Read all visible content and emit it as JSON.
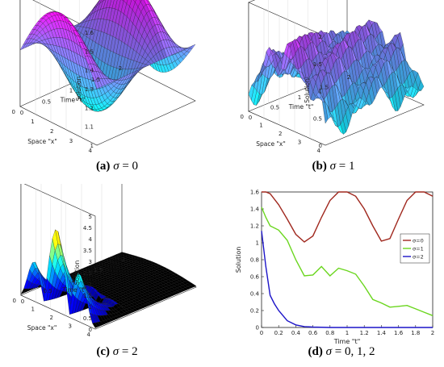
{
  "chart_data": [
    {
      "id": "a",
      "type": "surface",
      "caption": {
        "label": "(a)",
        "symbol": "σ",
        "rest": " = 0"
      },
      "zlabel": "Solution",
      "xlabel": "Space \"x\"",
      "ylabel": "Time \"t\"",
      "zticks": [
        "1",
        "1.1",
        "1.2",
        "1.3",
        "1.4",
        "1.5",
        "1.6"
      ],
      "xticks": [
        "4",
        "3",
        "2",
        "1",
        "0"
      ],
      "tticks": [
        "0",
        "0.5",
        "1",
        "1.5",
        "2"
      ],
      "colormap": "cool",
      "description_series": {
        "t": [
          0,
          0.5,
          1,
          1.5,
          2
        ],
        "peaks": 3
      }
    },
    {
      "id": "b",
      "type": "surface",
      "caption": {
        "label": "(b)",
        "symbol": "σ",
        "rest": " = 1"
      },
      "zlabel": "Solution",
      "xlabel": "Space \"x\"",
      "ylabel": "Time \"t\"",
      "zticks": [
        "0",
        "0.5",
        "1",
        "1.5",
        "2"
      ],
      "xticks": [
        "4",
        "3",
        "2",
        "1",
        "0"
      ],
      "tticks": [
        "0",
        "0.5",
        "1",
        "1.5",
        "2"
      ],
      "colormap": "cool"
    },
    {
      "id": "c",
      "type": "surface",
      "caption": {
        "label": "(c)",
        "symbol": "σ",
        "rest": " = 2"
      },
      "zlabel": "Solution",
      "xlabel": "Space \"x\"",
      "ylabel": "Time \"t\"",
      "zticks": [
        "0",
        "0.5",
        "1",
        "1.5",
        "2",
        "2.5",
        "3",
        "3.5",
        "4",
        "4.5",
        "5"
      ],
      "xticks": [
        "4",
        "3",
        "2",
        "1",
        "0"
      ],
      "tticks": [
        "0",
        "0.5",
        "1",
        "1.5",
        "2"
      ],
      "colormap": "jet"
    },
    {
      "id": "d",
      "type": "line",
      "caption": {
        "label": "(d)",
        "symbol": "σ",
        "rest": " = 0, 1, 2"
      },
      "xlabel": "Time \"t\"",
      "ylabel": "Solution",
      "xlim": [
        0,
        2
      ],
      "ylim": [
        0,
        1.6
      ],
      "xticks": [
        "0",
        "0.2",
        "0.4",
        "0.6",
        "0.8",
        "1",
        "1.2",
        "1.4",
        "1.6",
        "1.8",
        "2"
      ],
      "yticks": [
        "0",
        "0.2",
        "0.4",
        "0.6",
        "0.8",
        "1",
        "1.2",
        "1.4",
        "1.6"
      ],
      "legend_position": "right",
      "series": [
        {
          "name": "σ=0",
          "color": "#a0281e",
          "x": [
            0,
            0.05,
            0.1,
            0.2,
            0.3,
            0.4,
            0.5,
            0.6,
            0.7,
            0.8,
            0.9,
            1.0,
            1.1,
            1.2,
            1.3,
            1.4,
            1.5,
            1.6,
            1.7,
            1.8,
            1.9,
            2.0
          ],
          "y": [
            1.6,
            1.6,
            1.58,
            1.45,
            1.28,
            1.1,
            1.01,
            1.08,
            1.3,
            1.5,
            1.6,
            1.6,
            1.55,
            1.4,
            1.2,
            1.02,
            1.05,
            1.28,
            1.5,
            1.6,
            1.6,
            1.55
          ]
        },
        {
          "name": "σ=1",
          "color": "#6ad61e",
          "x": [
            0,
            0.05,
            0.1,
            0.2,
            0.3,
            0.4,
            0.5,
            0.6,
            0.7,
            0.8,
            0.9,
            1.0,
            1.1,
            1.2,
            1.3,
            1.4,
            1.5,
            1.6,
            1.7,
            1.8,
            1.9,
            2.0
          ],
          "y": [
            1.42,
            1.3,
            1.2,
            1.15,
            1.03,
            0.8,
            0.61,
            0.62,
            0.72,
            0.61,
            0.7,
            0.67,
            0.63,
            0.49,
            0.33,
            0.29,
            0.24,
            0.25,
            0.26,
            0.22,
            0.18,
            0.14
          ]
        },
        {
          "name": "σ=2",
          "color": "#1c14c8",
          "x": [
            0,
            0.05,
            0.1,
            0.15,
            0.2,
            0.3,
            0.4,
            0.5,
            0.6,
            0.8,
            1.0,
            1.2,
            1.4,
            1.6,
            1.8,
            2.0
          ],
          "y": [
            1.14,
            0.72,
            0.38,
            0.28,
            0.2,
            0.08,
            0.03,
            0.01,
            0.005,
            0,
            0,
            0,
            0,
            0,
            0,
            0
          ]
        }
      ]
    }
  ]
}
